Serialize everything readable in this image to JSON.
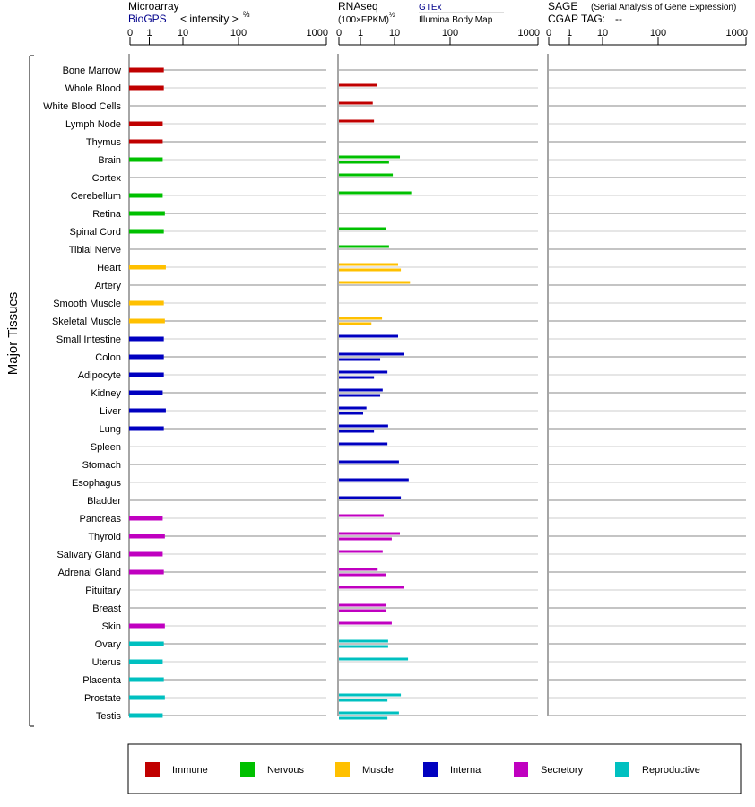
{
  "chart_data": {
    "type": "bar",
    "orientation": "horizontal",
    "ylabel": "Major Tissues",
    "panels": [
      {
        "key": "microarray",
        "title": "Microarray",
        "source": "BioGPS",
        "unit": "< intensity >",
        "unit_exp": "⅔",
        "ticks": [
          "0",
          "1",
          "10",
          "100",
          "1000"
        ],
        "xlim": [
          0,
          1000
        ]
      },
      {
        "key": "rnaseq",
        "title": "RNAseq",
        "unit": "(100×FPKM)",
        "unit_exp": "½",
        "source_top": "GTEx",
        "source_bottom": "Illumina Body Map",
        "ticks": [
          "0",
          "1",
          "10",
          "100",
          "1000"
        ],
        "xlim": [
          0,
          1000
        ]
      },
      {
        "key": "sage",
        "title": "SAGE",
        "subtitle": "(Serial Analysis of Gene Expression)",
        "tag_label": "CGAP TAG:",
        "tag_value": "--",
        "ticks": [
          "0",
          "1",
          "10",
          "100",
          "1000"
        ],
        "xlim": [
          0,
          1000
        ]
      }
    ],
    "groups": [
      {
        "name": "Immune",
        "color": "#c00000"
      },
      {
        "name": "Nervous",
        "color": "#00c000"
      },
      {
        "name": "Muscle",
        "color": "#ffc000"
      },
      {
        "name": "Internal",
        "color": "#0000c0"
      },
      {
        "name": "Secretory",
        "color": "#c000c0"
      },
      {
        "name": "Reproductive",
        "color": "#00c0c0"
      }
    ],
    "tissues": [
      {
        "name": "Bone Marrow",
        "group": "Immune",
        "microarray": 2.7,
        "rnaseq": []
      },
      {
        "name": "Whole Blood",
        "group": "Immune",
        "microarray": 2.7,
        "rnaseq": [
          3.0
        ]
      },
      {
        "name": "White Blood Cells",
        "group": "Immune",
        "microarray": null,
        "rnaseq": [
          2.3
        ]
      },
      {
        "name": "Lymph Node",
        "group": "Immune",
        "microarray": 2.5,
        "rnaseq": [
          2.5
        ]
      },
      {
        "name": "Thymus",
        "group": "Immune",
        "microarray": 2.5,
        "rnaseq": []
      },
      {
        "name": "Brain",
        "group": "Nervous",
        "microarray": 2.5,
        "rnaseq": [
          12.5,
          6.9
        ]
      },
      {
        "name": "Cortex",
        "group": "Nervous",
        "microarray": null,
        "rnaseq": [
          8.9
        ]
      },
      {
        "name": "Cerebellum",
        "group": "Nervous",
        "microarray": 2.5,
        "rnaseq": [
          20
        ]
      },
      {
        "name": "Retina",
        "group": "Nervous",
        "microarray": 2.9,
        "rnaseq": []
      },
      {
        "name": "Spinal Cord",
        "group": "Nervous",
        "microarray": 2.7,
        "rnaseq": [
          5.5
        ]
      },
      {
        "name": "Tibial Nerve",
        "group": "Nervous",
        "microarray": null,
        "rnaseq": [
          6.9
        ]
      },
      {
        "name": "Heart",
        "group": "Muscle",
        "microarray": 3.1,
        "rnaseq": [
          11.6,
          13
        ]
      },
      {
        "name": "Artery",
        "group": "Muscle",
        "microarray": null,
        "rnaseq": [
          19
        ]
      },
      {
        "name": "Smooth Muscle",
        "group": "Muscle",
        "microarray": 2.7,
        "rnaseq": []
      },
      {
        "name": "Skeletal Muscle",
        "group": "Muscle",
        "microarray": 2.9,
        "rnaseq": [
          4.3,
          2.1
        ]
      },
      {
        "name": "Small Intestine",
        "group": "Internal",
        "microarray": 2.7,
        "rnaseq": [
          11.6
        ]
      },
      {
        "name": "Colon",
        "group": "Internal",
        "microarray": 2.7,
        "rnaseq": [
          15,
          3.8
        ]
      },
      {
        "name": "Adipocyte",
        "group": "Internal",
        "microarray": 2.7,
        "rnaseq": [
          6.2,
          2.5
        ]
      },
      {
        "name": "Kidney",
        "group": "Internal",
        "microarray": 2.5,
        "rnaseq": [
          4.5,
          3.8
        ]
      },
      {
        "name": "Liver",
        "group": "Internal",
        "microarray": 3.1,
        "rnaseq": [
          1.5,
          1.2
        ]
      },
      {
        "name": "Lung",
        "group": "Internal",
        "microarray": 2.7,
        "rnaseq": [
          6.5,
          2.5
        ]
      },
      {
        "name": "Spleen",
        "group": "Internal",
        "microarray": null,
        "rnaseq": [
          6.2
        ]
      },
      {
        "name": "Stomach",
        "group": "Internal",
        "microarray": null,
        "rnaseq": [
          12
        ]
      },
      {
        "name": "Esophagus",
        "group": "Internal",
        "microarray": null,
        "rnaseq": [
          18
        ]
      },
      {
        "name": "Bladder",
        "group": "Internal",
        "microarray": null,
        "rnaseq": [
          13
        ]
      },
      {
        "name": "Pancreas",
        "group": "Secretory",
        "microarray": 2.5,
        "rnaseq": [
          4.8
        ]
      },
      {
        "name": "Thyroid",
        "group": "Secretory",
        "microarray": 2.9,
        "rnaseq": [
          12.5,
          8.3
        ]
      },
      {
        "name": "Salivary Gland",
        "group": "Secretory",
        "microarray": 2.5,
        "rnaseq": [
          4.5
        ]
      },
      {
        "name": "Adrenal Gland",
        "group": "Secretory",
        "microarray": 2.7,
        "rnaseq": [
          3.2,
          5.5
        ]
      },
      {
        "name": "Pituitary",
        "group": "Secretory",
        "microarray": null,
        "rnaseq": [
          15
        ]
      },
      {
        "name": "Breast",
        "group": "Secretory",
        "microarray": null,
        "rnaseq": [
          5.8,
          5.8
        ]
      },
      {
        "name": "Skin",
        "group": "Secretory",
        "microarray": 2.9,
        "rnaseq": [
          8.3
        ]
      },
      {
        "name": "Ovary",
        "group": "Reproductive",
        "microarray": 2.7,
        "rnaseq": [
          6.5,
          6.5
        ]
      },
      {
        "name": "Uterus",
        "group": "Reproductive",
        "microarray": 2.5,
        "rnaseq": [
          17.5
        ]
      },
      {
        "name": "Placenta",
        "group": "Reproductive",
        "microarray": 2.7,
        "rnaseq": []
      },
      {
        "name": "Prostate",
        "group": "Reproductive",
        "microarray": 2.9,
        "rnaseq": [
          13,
          6.2
        ]
      },
      {
        "name": "Testis",
        "group": "Reproductive",
        "microarray": 2.5,
        "rnaseq": [
          12,
          6.2
        ]
      }
    ],
    "sage": [],
    "legend": "bottom",
    "grid": true
  }
}
